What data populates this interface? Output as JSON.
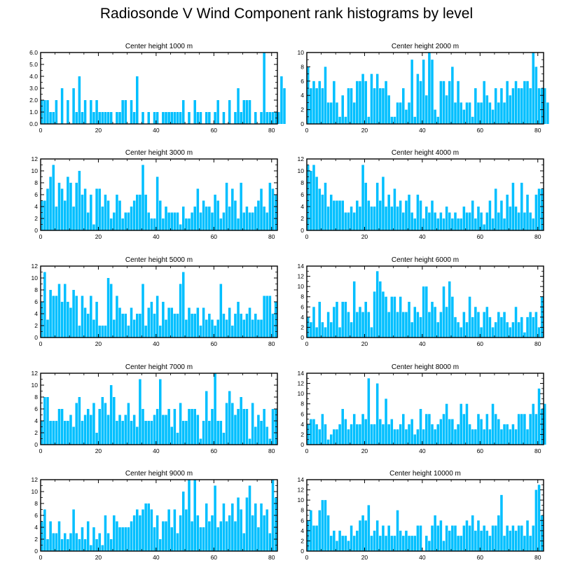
{
  "title": "Radiosonde V Wind Component rank histograms by level",
  "bar_color": "#00bfff",
  "chart_data": [
    {
      "type": "bar",
      "title": "Center height 1000 m",
      "xlim": [
        0,
        82
      ],
      "ylim": [
        0,
        6
      ],
      "yticks": [
        "0.0",
        "1.0",
        "2.0",
        "3.0",
        "4.0",
        "5.0",
        "6.0"
      ],
      "xticks": [
        0,
        20,
        40,
        60,
        80
      ],
      "values": [
        2,
        2,
        2,
        1,
        1,
        2,
        0,
        3,
        0,
        2,
        0,
        3,
        1,
        4,
        1,
        2,
        0,
        2,
        1,
        2,
        1,
        1,
        1,
        1,
        1,
        0,
        1,
        1,
        2,
        2,
        0,
        2,
        1,
        4,
        0,
        1,
        0,
        1,
        0,
        1,
        1,
        0,
        1,
        1,
        1,
        1,
        1,
        1,
        1,
        2,
        0,
        1,
        0,
        2,
        1,
        1,
        0,
        1,
        1,
        0,
        1,
        2,
        0,
        1,
        0,
        2,
        0,
        1,
        3,
        1,
        2,
        2,
        2,
        0,
        1,
        0,
        1,
        6,
        1,
        1,
        1,
        1,
        1,
        4,
        3
      ]
    },
    {
      "type": "bar",
      "title": "Center height 2000 m",
      "xlim": [
        0,
        82
      ],
      "ylim": [
        0,
        10
      ],
      "yticks": [
        "0",
        "2",
        "4",
        "6",
        "8",
        "10"
      ],
      "xticks": [
        0,
        20,
        40,
        60,
        80
      ],
      "values": [
        8,
        5,
        6,
        5,
        6,
        5,
        8,
        3,
        3,
        6,
        3,
        1,
        4,
        1,
        5,
        5,
        3,
        6,
        6,
        7,
        6,
        1,
        7,
        5,
        7,
        5,
        5,
        6,
        4,
        1,
        1,
        3,
        3,
        5,
        2,
        3,
        9,
        1,
        7,
        6,
        9,
        4,
        10,
        9,
        2,
        1,
        6,
        6,
        4,
        6,
        8,
        3,
        6,
        3,
        2,
        3,
        3,
        1,
        5,
        3,
        3,
        6,
        4,
        3,
        2,
        5,
        3,
        5,
        3,
        6,
        4,
        5,
        6,
        5,
        5,
        6,
        6,
        5,
        10,
        8,
        5,
        5,
        5,
        3
      ]
    },
    {
      "type": "bar",
      "title": "Center height 3000 m",
      "xlim": [
        0,
        82
      ],
      "ylim": [
        0,
        12
      ],
      "yticks": [
        "0",
        "2",
        "4",
        "6",
        "8",
        "10",
        "12"
      ],
      "xticks": [
        0,
        20,
        40,
        60,
        80
      ],
      "values": [
        5,
        5,
        7,
        9,
        11,
        4,
        8,
        7,
        5,
        9,
        8,
        4,
        8,
        10,
        6,
        7,
        3,
        6,
        1,
        7,
        7,
        4,
        6,
        5,
        2,
        3,
        6,
        5,
        2,
        3,
        3,
        4,
        5,
        6,
        6,
        11,
        6,
        3,
        2,
        2,
        9,
        5,
        2,
        4,
        3,
        3,
        3,
        3,
        1,
        4,
        2,
        2,
        3,
        4,
        7,
        3,
        5,
        4,
        4,
        3,
        6,
        5,
        2,
        3,
        8,
        4,
        7,
        5,
        2,
        8,
        3,
        4,
        3,
        3,
        4,
        5,
        7,
        4,
        3,
        8,
        7,
        6
      ]
    },
    {
      "type": "bar",
      "title": "Center height 4000 m",
      "xlim": [
        0,
        82
      ],
      "ylim": [
        0,
        12
      ],
      "yticks": [
        "0",
        "2",
        "4",
        "6",
        "8",
        "10",
        "12"
      ],
      "xticks": [
        0,
        20,
        40,
        60,
        80
      ],
      "values": [
        11,
        10,
        11,
        9,
        7,
        6,
        8,
        4,
        6,
        5,
        5,
        5,
        5,
        3,
        3,
        4,
        3,
        5,
        4,
        11,
        8,
        5,
        4,
        4,
        8,
        5,
        9,
        4,
        6,
        4,
        7,
        4,
        5,
        3,
        5,
        6,
        3,
        2,
        6,
        5,
        2,
        4,
        3,
        5,
        3,
        2,
        3,
        2,
        4,
        3,
        2,
        3,
        2,
        2,
        4,
        3,
        3,
        5,
        2,
        4,
        3,
        1,
        3,
        5,
        2,
        7,
        3,
        5,
        2,
        6,
        4,
        8,
        4,
        3,
        8,
        3,
        6,
        3,
        2,
        6,
        7,
        7
      ]
    },
    {
      "type": "bar",
      "title": "Center height 5000 m",
      "xlim": [
        0,
        82
      ],
      "ylim": [
        0,
        12
      ],
      "yticks": [
        "0",
        "2",
        "4",
        "6",
        "8",
        "10",
        "12"
      ],
      "xticks": [
        0,
        20,
        40,
        60,
        80
      ],
      "values": [
        6,
        11,
        3,
        8,
        7,
        7,
        9,
        6,
        9,
        6,
        5,
        8,
        7,
        2,
        7,
        5,
        4,
        7,
        3,
        6,
        2,
        2,
        2,
        10,
        9,
        3,
        7,
        5,
        4,
        4,
        2,
        5,
        3,
        4,
        4,
        9,
        2,
        5,
        6,
        4,
        7,
        2,
        6,
        3,
        5,
        5,
        4,
        4,
        9,
        11,
        3,
        5,
        4,
        4,
        5,
        2,
        5,
        3,
        4,
        3,
        2,
        3,
        9,
        4,
        3,
        5,
        2,
        4,
        6,
        4,
        3,
        4,
        5,
        3,
        4,
        3,
        3,
        7,
        7,
        7,
        4,
        6
      ]
    },
    {
      "type": "bar",
      "title": "Center height 6000 m",
      "xlim": [
        0,
        82
      ],
      "ylim": [
        0,
        14
      ],
      "yticks": [
        "0",
        "2",
        "4",
        "6",
        "8",
        "10",
        "12",
        "14"
      ],
      "xticks": [
        0,
        20,
        40,
        60,
        80
      ],
      "values": [
        4,
        3,
        6,
        2,
        7,
        3,
        2,
        5,
        3,
        6,
        7,
        2,
        7,
        7,
        5,
        3,
        11,
        5,
        6,
        5,
        7,
        5,
        2,
        9,
        13,
        11,
        9,
        8,
        5,
        8,
        8,
        5,
        8,
        5,
        5,
        7,
        3,
        6,
        5,
        4,
        10,
        10,
        5,
        7,
        6,
        3,
        5,
        10,
        6,
        11,
        8,
        4,
        3,
        2,
        5,
        3,
        8,
        4,
        6,
        5,
        2,
        5,
        6,
        4,
        2,
        3,
        5,
        4,
        5,
        3,
        2,
        3,
        6,
        3,
        4,
        1,
        4,
        5,
        4,
        5,
        2,
        8
      ]
    },
    {
      "type": "bar",
      "title": "Center height 7000 m",
      "xlim": [
        0,
        82
      ],
      "ylim": [
        0,
        12
      ],
      "yticks": [
        "0",
        "2",
        "4",
        "6",
        "8",
        "10",
        "12"
      ],
      "xticks": [
        0,
        20,
        40,
        60,
        80
      ],
      "values": [
        4,
        8,
        8,
        4,
        4,
        4,
        6,
        6,
        4,
        4,
        5,
        3,
        7,
        8,
        4,
        5,
        6,
        5,
        7,
        2,
        6,
        8,
        7,
        5,
        10,
        8,
        4,
        5,
        4,
        5,
        7,
        4,
        5,
        3,
        11,
        6,
        4,
        4,
        4,
        5,
        6,
        11,
        5,
        5,
        6,
        3,
        6,
        2,
        7,
        4,
        4,
        6,
        6,
        6,
        5,
        1,
        4,
        9,
        4,
        6,
        12,
        4,
        4,
        2,
        7,
        9,
        7,
        5,
        6,
        8,
        6,
        6,
        1,
        7,
        3,
        5,
        4,
        6,
        3,
        1,
        6,
        6
      ]
    },
    {
      "type": "bar",
      "title": "Center height 8000 m",
      "xlim": [
        0,
        82
      ],
      "ylim": [
        0,
        14
      ],
      "yticks": [
        "0",
        "2",
        "4",
        "6",
        "8",
        "10",
        "12",
        "14"
      ],
      "xticks": [
        0,
        20,
        40,
        60,
        80
      ],
      "values": [
        4,
        5,
        5,
        4,
        3,
        6,
        4,
        1,
        2,
        3,
        3,
        4,
        7,
        5,
        3,
        4,
        6,
        4,
        4,
        6,
        5,
        13,
        4,
        4,
        12,
        5,
        4,
        9,
        4,
        5,
        3,
        3,
        4,
        6,
        3,
        4,
        5,
        2,
        3,
        7,
        3,
        6,
        6,
        4,
        3,
        4,
        5,
        6,
        8,
        5,
        5,
        3,
        4,
        8,
        6,
        8,
        4,
        3,
        3,
        6,
        5,
        3,
        6,
        3,
        8,
        6,
        5,
        3,
        4,
        4,
        3,
        4,
        3,
        6,
        6,
        6,
        3,
        6,
        8,
        6,
        11,
        7,
        8
      ]
    },
    {
      "type": "bar",
      "title": "Center height 9000 m",
      "xlim": [
        0,
        82
      ],
      "ylim": [
        0,
        12
      ],
      "yticks": [
        "0",
        "2",
        "4",
        "6",
        "8",
        "10",
        "12"
      ],
      "xticks": [
        0,
        20,
        40,
        60,
        80
      ],
      "values": [
        5,
        7,
        2,
        5,
        3,
        3,
        5,
        2,
        3,
        2,
        3,
        7,
        3,
        2,
        4,
        2,
        5,
        1,
        4,
        2,
        3,
        1,
        6,
        3,
        2,
        6,
        5,
        4,
        4,
        4,
        4,
        5,
        6,
        7,
        6,
        7,
        8,
        8,
        7,
        4,
        6,
        2,
        5,
        5,
        7,
        4,
        7,
        3,
        6,
        10,
        7,
        12,
        5,
        12,
        6,
        4,
        4,
        8,
        5,
        6,
        11,
        4,
        5,
        8,
        5,
        6,
        8,
        5,
        9,
        7,
        3,
        9,
        11,
        6,
        8,
        4,
        8,
        6,
        7,
        3,
        12,
        9
      ]
    },
    {
      "type": "bar",
      "title": "Center height 10000 m",
      "xlim": [
        0,
        82
      ],
      "ylim": [
        0,
        14
      ],
      "yticks": [
        "0",
        "2",
        "4",
        "6",
        "8",
        "10",
        "12",
        "14"
      ],
      "xticks": [
        0,
        20,
        40,
        60,
        80
      ],
      "values": [
        6,
        8,
        5,
        5,
        8,
        10,
        10,
        7,
        3,
        4,
        2,
        4,
        3,
        3,
        2,
        5,
        3,
        4,
        6,
        7,
        6,
        9,
        3,
        4,
        6,
        3,
        5,
        3,
        5,
        3,
        3,
        8,
        4,
        3,
        4,
        3,
        3,
        3,
        5,
        5,
        0,
        3,
        2,
        5,
        7,
        5,
        6,
        2,
        5,
        4,
        5,
        5,
        3,
        3,
        5,
        6,
        5,
        7,
        4,
        6,
        4,
        5,
        4,
        3,
        5,
        5,
        7,
        11,
        3,
        5,
        4,
        5,
        4,
        5,
        5,
        3,
        6,
        3,
        5,
        12,
        13,
        7
      ]
    }
  ]
}
